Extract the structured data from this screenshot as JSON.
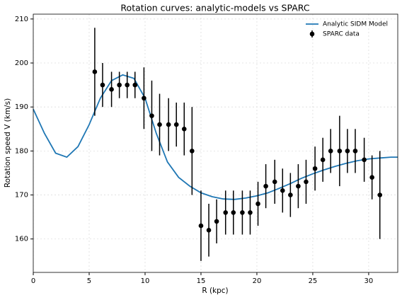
{
  "chart_data": {
    "type": "line",
    "title": "Rotation curves: analytic-models vs SPARC",
    "x_label": "R (kpc)",
    "y_label": "Rotation speed V (km/s)",
    "xlim": [
      0,
      32.6
    ],
    "ylim": [
      152.4,
      211.1
    ],
    "xticks": [
      0,
      5,
      10,
      15,
      20,
      25,
      30
    ],
    "yticks": [
      160,
      170,
      180,
      190,
      200,
      210
    ],
    "grid": true,
    "legend": "upper right",
    "series": [
      {
        "name": "Analytic SIDM Model",
        "type": "line",
        "color": "#1f77b4",
        "x": [
          0,
          1,
          2,
          3,
          4,
          5,
          6,
          7,
          8,
          9,
          10,
          11,
          12,
          13,
          14,
          15,
          16,
          17,
          18,
          19,
          20,
          21,
          22,
          23,
          24,
          25,
          26,
          27,
          28,
          29,
          30,
          31,
          32,
          32.6
        ],
        "values": [
          189.5,
          184,
          179.5,
          178.6,
          181,
          186,
          192,
          196,
          197.3,
          196.5,
          192,
          184,
          177.5,
          174,
          172,
          170.5,
          169.6,
          169.1,
          169,
          169.3,
          169.8,
          170.5,
          171.5,
          172.6,
          173.8,
          174.8,
          175.7,
          176.5,
          177.2,
          177.8,
          178.2,
          178.4,
          178.6,
          178.6
        ]
      },
      {
        "name": "SPARC data",
        "type": "errorbar",
        "color": "#000000",
        "x": [
          5.5,
          6.2,
          7.0,
          7.7,
          8.4,
          9.1,
          9.9,
          10.6,
          11.3,
          12.1,
          12.8,
          13.5,
          14.2,
          15.0,
          15.7,
          16.4,
          17.2,
          17.9,
          18.7,
          19.4,
          20.1,
          20.8,
          21.6,
          22.3,
          23.0,
          23.7,
          24.4,
          25.2,
          25.9,
          26.6,
          27.4,
          28.1,
          28.8,
          29.6,
          30.3,
          31.0
        ],
        "values": [
          198,
          195,
          194,
          195,
          195,
          195,
          192,
          188,
          186,
          186,
          186,
          185,
          180,
          163,
          162,
          164,
          166,
          166,
          166,
          166,
          168,
          172,
          173,
          171,
          170,
          172,
          173,
          176,
          178,
          180,
          180,
          180,
          180,
          178,
          174,
          170
        ],
        "errors": [
          10,
          5,
          4,
          3,
          3,
          3,
          7,
          8,
          7,
          6,
          5,
          6,
          10,
          8,
          6,
          5,
          5,
          5,
          5,
          5,
          5,
          5,
          5,
          5,
          5,
          5,
          5,
          5,
          5,
          5,
          8,
          5,
          5,
          5,
          5,
          10
        ]
      }
    ]
  }
}
